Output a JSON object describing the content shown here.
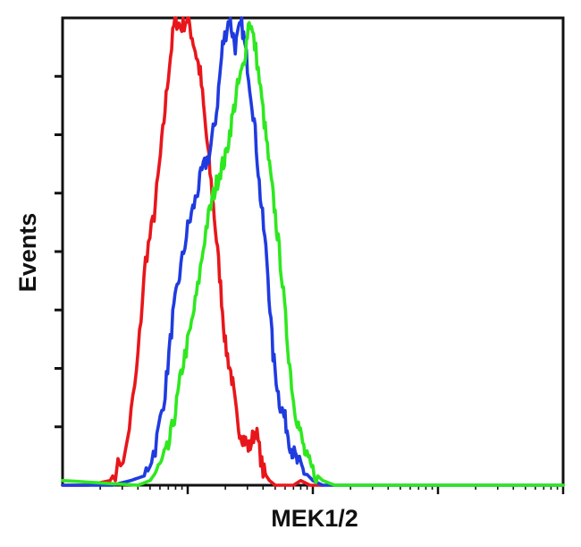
{
  "chart_data": {
    "type": "line",
    "xlabel": "MEK1/2",
    "ylabel": "Events",
    "x_scale": "log",
    "xlim": [
      1,
      10000
    ],
    "ylim": [
      0,
      100
    ],
    "grid": false,
    "legend": "none",
    "series": [
      {
        "color": "#e8161b",
        "x": [
          1,
          1.6,
          2.4,
          3.2,
          3.9,
          4.6,
          5.4,
          6.2,
          7.0,
          7.9,
          8.8,
          10,
          11.3,
          12.6,
          14.2,
          16,
          18,
          20,
          22.5,
          25,
          28,
          31,
          35,
          40,
          45,
          50,
          56,
          63,
          70,
          80,
          95,
          120
        ],
        "y": [
          0,
          0,
          1,
          7,
          24,
          48,
          58,
          73,
          88,
          100,
          98,
          100,
          94,
          88,
          74,
          60,
          45,
          30,
          23,
          13,
          10,
          8,
          12,
          3,
          1,
          0,
          0,
          0,
          0,
          1,
          0,
          0
        ]
      },
      {
        "color": "#1f3be0",
        "x": [
          1,
          2.5,
          3.5,
          4.5,
          5.5,
          6.6,
          7.6,
          8.6,
          10,
          11.5,
          13,
          15,
          17,
          19,
          21.5,
          24,
          27,
          30,
          34,
          38,
          43,
          48,
          54,
          60,
          67,
          75,
          85,
          100,
          120,
          150,
          200,
          10000
        ],
        "y": [
          0,
          0,
          1,
          2,
          8,
          20,
          36,
          45,
          55,
          61,
          67,
          71,
          80,
          94,
          100,
          94,
          99,
          90,
          78,
          62,
          48,
          28,
          18,
          14,
          8,
          5,
          3,
          1,
          0,
          0,
          0,
          0
        ]
      },
      {
        "color": "#2ee81f",
        "x": [
          1,
          4,
          5,
          6,
          7,
          8,
          9,
          10.5,
          12,
          14,
          16,
          18,
          20,
          22.5,
          25,
          28,
          31,
          35,
          40,
          45,
          50,
          56,
          63,
          70,
          78,
          88,
          100,
          120,
          150,
          250,
          1000,
          10000
        ],
        "y": [
          1,
          0,
          1,
          4,
          8,
          16,
          25,
          33,
          42,
          55,
          62,
          67,
          70,
          78,
          85,
          90,
          100,
          93,
          80,
          68,
          58,
          46,
          30,
          18,
          12,
          6,
          3,
          1,
          0,
          0,
          0,
          0
        ]
      }
    ]
  }
}
